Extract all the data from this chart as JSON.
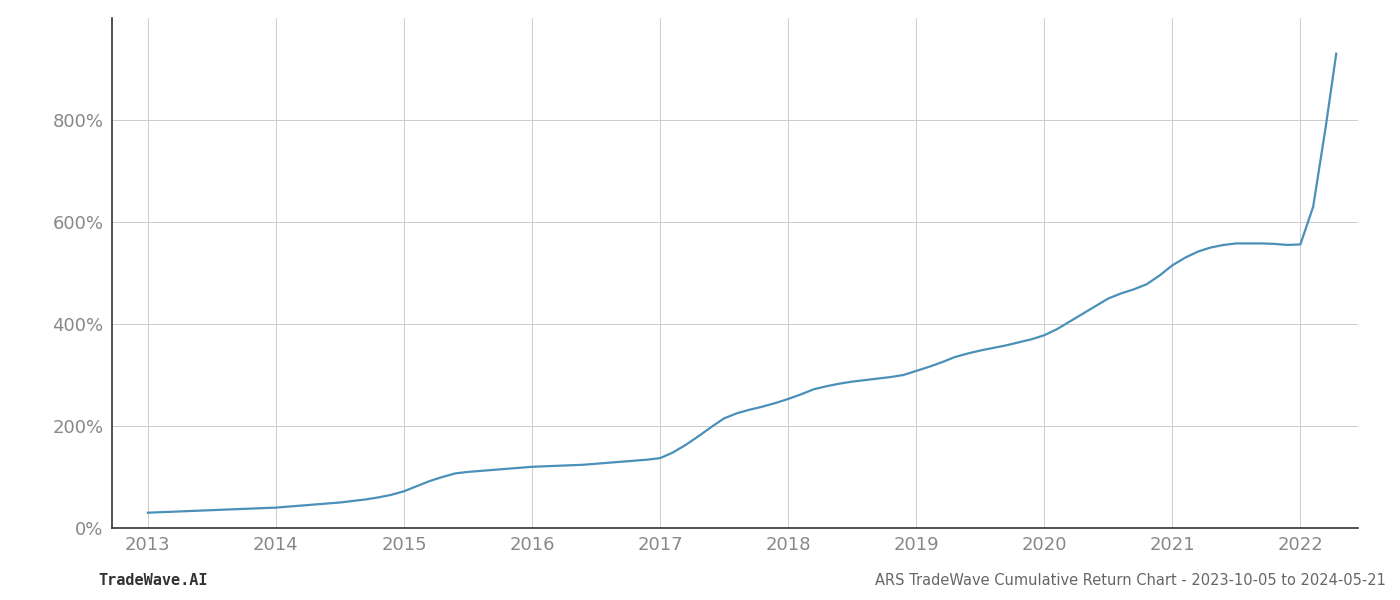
{
  "title": "ARS TradeWave Cumulative Return Chart - 2023-10-05 to 2024-05-21",
  "watermark": "TradeWave.AI",
  "line_color": "#4a90b8",
  "background_color": "#ffffff",
  "grid_color": "#cccccc",
  "x_years": [
    2013,
    2014,
    2015,
    2016,
    2017,
    2018,
    2019,
    2020,
    2021,
    2022
  ],
  "x_data": [
    2013.0,
    2013.1,
    2013.2,
    2013.3,
    2013.4,
    2013.5,
    2013.6,
    2013.7,
    2013.8,
    2013.9,
    2014.0,
    2014.1,
    2014.2,
    2014.3,
    2014.4,
    2014.5,
    2014.6,
    2014.7,
    2014.8,
    2014.9,
    2015.0,
    2015.1,
    2015.2,
    2015.3,
    2015.4,
    2015.5,
    2015.6,
    2015.7,
    2015.8,
    2015.9,
    2016.0,
    2016.1,
    2016.2,
    2016.3,
    2016.4,
    2016.5,
    2016.6,
    2016.7,
    2016.8,
    2016.9,
    2017.0,
    2017.1,
    2017.2,
    2017.3,
    2017.4,
    2017.5,
    2017.6,
    2017.7,
    2017.8,
    2017.9,
    2018.0,
    2018.1,
    2018.2,
    2018.3,
    2018.4,
    2018.5,
    2018.6,
    2018.7,
    2018.8,
    2018.9,
    2019.0,
    2019.1,
    2019.2,
    2019.3,
    2019.4,
    2019.5,
    2019.6,
    2019.7,
    2019.8,
    2019.9,
    2020.0,
    2020.1,
    2020.2,
    2020.3,
    2020.4,
    2020.5,
    2020.6,
    2020.7,
    2020.8,
    2020.9,
    2021.0,
    2021.1,
    2021.2,
    2021.3,
    2021.4,
    2021.5,
    2021.6,
    2021.7,
    2021.8,
    2021.9,
    2022.0,
    2022.1,
    2022.2,
    2022.28
  ],
  "y_data": [
    30,
    31,
    32,
    33,
    34,
    35,
    36,
    37,
    38,
    39,
    40,
    42,
    44,
    46,
    48,
    50,
    53,
    56,
    60,
    65,
    72,
    82,
    92,
    100,
    107,
    110,
    112,
    114,
    116,
    118,
    120,
    121,
    122,
    123,
    124,
    126,
    128,
    130,
    132,
    134,
    137,
    148,
    163,
    180,
    198,
    215,
    225,
    232,
    238,
    245,
    253,
    262,
    272,
    278,
    283,
    287,
    290,
    293,
    296,
    300,
    308,
    316,
    325,
    335,
    342,
    348,
    353,
    358,
    364,
    370,
    378,
    390,
    405,
    420,
    435,
    450,
    460,
    468,
    478,
    495,
    515,
    530,
    542,
    550,
    555,
    558,
    558,
    558,
    557,
    555,
    556,
    630,
    790,
    930
  ],
  "ylim": [
    0,
    1000
  ],
  "yticks": [
    0,
    200,
    400,
    600,
    800
  ],
  "xlim": [
    2012.72,
    2022.45
  ],
  "title_fontsize": 10.5,
  "watermark_fontsize": 11,
  "tick_fontsize": 13,
  "title_color": "#666666",
  "watermark_color": "#333333",
  "tick_color": "#888888",
  "line_width": 1.6,
  "spine_color": "#333333"
}
